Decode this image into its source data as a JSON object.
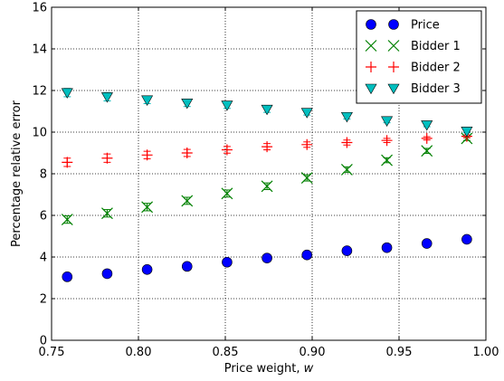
{
  "chart_data": {
    "type": "scatter",
    "xlabel": "Price weight,",
    "xlabel_var": "w",
    "ylabel": "Percentage relative error",
    "xlim": [
      0.75,
      1.0
    ],
    "ylim": [
      0,
      16
    ],
    "xticks": [
      "0.75",
      "0.80",
      "0.85",
      "0.90",
      "0.95",
      "1.00"
    ],
    "yticks": [
      "0",
      "2",
      "4",
      "6",
      "8",
      "10",
      "12",
      "14",
      "16"
    ],
    "grid": true,
    "legend_position": "top-right",
    "x": [
      0.759,
      0.782,
      0.805,
      0.828,
      0.851,
      0.874,
      0.897,
      0.92,
      0.943,
      0.966,
      0.989
    ],
    "series": [
      {
        "name": "Price",
        "marker": "circle",
        "color": "#0000ff",
        "values": [
          3.05,
          3.2,
          3.4,
          3.55,
          3.75,
          3.95,
          4.1,
          4.3,
          4.45,
          4.65,
          4.85
        ],
        "err": [
          0.1,
          0.1,
          0.1,
          0.1,
          0.1,
          0.1,
          0.1,
          0.1,
          0.1,
          0.1,
          0.1
        ]
      },
      {
        "name": "Bidder 1",
        "marker": "x",
        "color": "#008000",
        "values": [
          5.8,
          6.1,
          6.4,
          6.7,
          7.05,
          7.4,
          7.8,
          8.2,
          8.65,
          9.1,
          9.7
        ],
        "err": [
          0.18,
          0.18,
          0.18,
          0.17,
          0.17,
          0.16,
          0.15,
          0.13,
          0.12,
          0.12,
          0.1
        ]
      },
      {
        "name": "Bidder 2",
        "marker": "plus",
        "color": "#ff0000",
        "values": [
          8.55,
          8.75,
          8.9,
          9.0,
          9.15,
          9.3,
          9.4,
          9.5,
          9.6,
          9.7,
          9.8
        ],
        "err": [
          0.2,
          0.2,
          0.18,
          0.17,
          0.16,
          0.15,
          0.13,
          0.12,
          0.1,
          0.08,
          0.07
        ]
      },
      {
        "name": "Bidder 3",
        "marker": "triangle-down",
        "color": "#00bfbf",
        "values": [
          11.9,
          11.7,
          11.55,
          11.4,
          11.3,
          11.1,
          10.95,
          10.75,
          10.55,
          10.35,
          10.05
        ],
        "err": [
          0.2,
          0.2,
          0.18,
          0.17,
          0.16,
          0.15,
          0.13,
          0.12,
          0.1,
          0.09,
          0.08
        ]
      }
    ]
  }
}
